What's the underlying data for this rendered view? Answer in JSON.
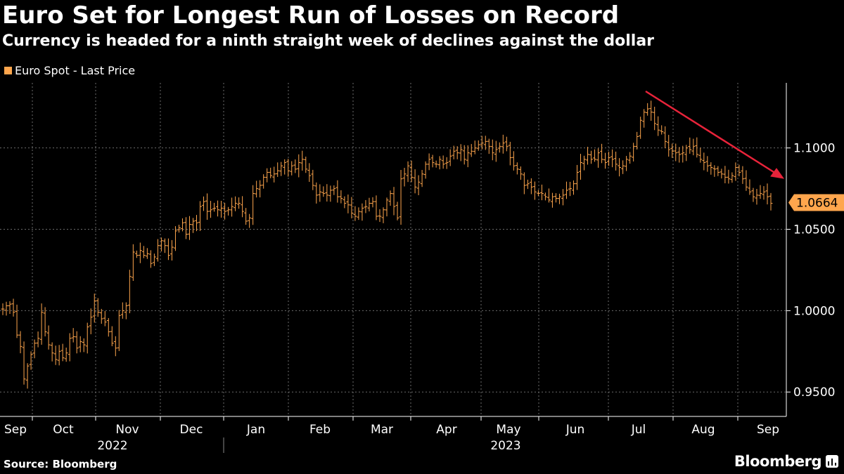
{
  "title": "Euro Set for Longest Run of Losses on Record",
  "subtitle": "Currency is headed for a ninth straight week of declines against the dollar",
  "source": "Source: Bloomberg",
  "brand": "Bloomberg",
  "colors": {
    "series": "#ffa64d",
    "arrow": "#e8233a",
    "grid": "#6b6b6b",
    "axis": "#ffffff",
    "background": "#000000"
  },
  "chart_data": {
    "type": "ohlc",
    "title": "Euro Set for Longest Run of Losses on Record",
    "subtitle": "Currency is headed for a ninth straight week of declines against the dollar",
    "legend": [
      "Euro Spot - Last Price"
    ],
    "series_name": "Euro Spot - Last Price",
    "x_start": "Sep 2022",
    "x_end": "Sep 2023",
    "month_ticks": [
      "Sep",
      "Oct",
      "Nov",
      "Dec",
      "Jan",
      "Feb",
      "Mar",
      "Apr",
      "May",
      "Jun",
      "Jul",
      "Aug",
      "Sep"
    ],
    "year_labels": [
      "2022",
      "2023"
    ],
    "y_ticks": [
      "0.9500",
      "1.0000",
      "1.0500",
      "1.1000"
    ],
    "ylim": [
      0.935,
      1.14
    ],
    "last_price": 1.0664,
    "last_price_label": "1.0664",
    "annotation": "downward trend arrow from mid-July 2023 peak",
    "closes": [
      1.001,
      1.003,
      1.004,
      0.999,
      0.985,
      0.978,
      0.958,
      0.966,
      0.973,
      0.98,
      0.983,
      0.999,
      0.987,
      0.979,
      0.974,
      0.97,
      0.975,
      0.971,
      0.974,
      0.983,
      0.984,
      0.977,
      0.981,
      0.979,
      0.99,
      0.996,
      1.006,
      0.999,
      0.995,
      0.993,
      0.987,
      0.98,
      0.977,
      0.997,
      1.0,
      1.003,
      1.021,
      1.036,
      1.034,
      1.037,
      1.034,
      1.035,
      1.029,
      1.033,
      1.04,
      1.043,
      1.04,
      1.034,
      1.039,
      1.049,
      1.051,
      1.054,
      1.047,
      1.053,
      1.055,
      1.054,
      1.064,
      1.067,
      1.061,
      1.062,
      1.063,
      1.062,
      1.063,
      1.061,
      1.062,
      1.064,
      1.066,
      1.066,
      1.061,
      1.055,
      1.057,
      1.072,
      1.075,
      1.077,
      1.082,
      1.085,
      1.083,
      1.084,
      1.086,
      1.089,
      1.091,
      1.086,
      1.089,
      1.087,
      1.091,
      1.093,
      1.087,
      1.083,
      1.077,
      1.071,
      1.073,
      1.072,
      1.071,
      1.074,
      1.075,
      1.07,
      1.069,
      1.066,
      1.065,
      1.06,
      1.058,
      1.061,
      1.063,
      1.064,
      1.066,
      1.067,
      1.058,
      1.058,
      1.062,
      1.068,
      1.072,
      1.064,
      1.057,
      1.081,
      1.084,
      1.089,
      1.082,
      1.076,
      1.079,
      1.084,
      1.09,
      1.093,
      1.091,
      1.09,
      1.093,
      1.09,
      1.091,
      1.095,
      1.098,
      1.097,
      1.099,
      1.093,
      1.097,
      1.098,
      1.1,
      1.102,
      1.103,
      1.104,
      1.101,
      1.097,
      1.099,
      1.101,
      1.103,
      1.101,
      1.094,
      1.089,
      1.087,
      1.084,
      1.077,
      1.078,
      1.076,
      1.073,
      1.072,
      1.072,
      1.07,
      1.068,
      1.07,
      1.069,
      1.07,
      1.071,
      1.074,
      1.075,
      1.078,
      1.085,
      1.091,
      1.093,
      1.096,
      1.093,
      1.093,
      1.097,
      1.093,
      1.091,
      1.094,
      1.093,
      1.09,
      1.088,
      1.089,
      1.093,
      1.095,
      1.101,
      1.107,
      1.117,
      1.122,
      1.124,
      1.122,
      1.115,
      1.111,
      1.11,
      1.104,
      1.099,
      1.098,
      1.097,
      1.096,
      1.097,
      1.1,
      1.099,
      1.101,
      1.096,
      1.093,
      1.091,
      1.089,
      1.088,
      1.087,
      1.085,
      1.084,
      1.082,
      1.081,
      1.083,
      1.088,
      1.085,
      1.081,
      1.076,
      1.073,
      1.07,
      1.071,
      1.072,
      1.073,
      1.07,
      1.066
    ]
  }
}
